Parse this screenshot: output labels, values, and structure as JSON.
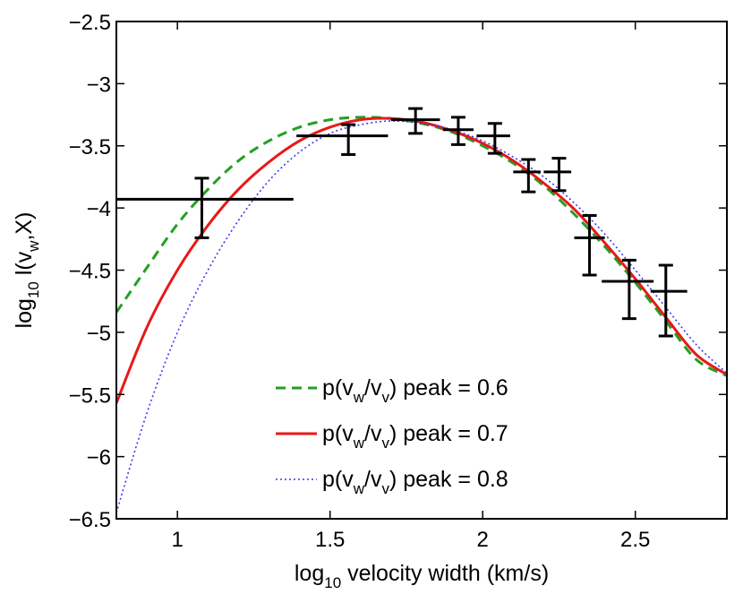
{
  "chart_data": {
    "type": "line",
    "title": "",
    "xlim": [
      0.8,
      2.8
    ],
    "ylim": [
      -6.5,
      -2.5
    ],
    "xticks": [
      1,
      1.5,
      2,
      2.5
    ],
    "xtick_labels": [
      "1",
      "1.5",
      "2",
      "2.5"
    ],
    "yticks": [
      -2.5,
      -3,
      -3.5,
      -4,
      -4.5,
      -5,
      -5.5,
      -6,
      -6.5
    ],
    "ytick_labels": [
      "−2.5",
      "−3",
      "−3.5",
      "−4",
      "−4.5",
      "−5",
      "−5.5",
      "−6",
      "−6.5"
    ],
    "xlabel": {
      "pre": "log",
      "sub": "10",
      "post": " velocity width (km/s)"
    },
    "ylabel": {
      "pre": "log",
      "sub1": "10",
      "mid": " l(v",
      "sub2": "w",
      "post": ",X)"
    },
    "grid": false,
    "legend_position": "bottom-center",
    "series": [
      {
        "name": "p(v_w/v_v) peak = 0.6",
        "legend": {
          "pre": "p(v",
          "s1": "w",
          "mid": "/v",
          "s2": "v",
          "post": ") peak = 0.6"
        },
        "color": "#22a022",
        "style": "dashed",
        "x": [
          0.8,
          0.9,
          1.0,
          1.1,
          1.2,
          1.3,
          1.4,
          1.5,
          1.6,
          1.7,
          1.8,
          1.9,
          2.0,
          2.1,
          2.2,
          2.3,
          2.4,
          2.5,
          2.6,
          2.7,
          2.8
        ],
        "y": [
          -4.84,
          -4.48,
          -4.13,
          -3.85,
          -3.62,
          -3.46,
          -3.35,
          -3.29,
          -3.27,
          -3.28,
          -3.32,
          -3.39,
          -3.5,
          -3.64,
          -3.82,
          -4.05,
          -4.31,
          -4.6,
          -4.91,
          -5.22,
          -5.35
        ]
      },
      {
        "name": "p(v_w/v_v) peak = 0.7",
        "legend": {
          "pre": "p(v",
          "s1": "w",
          "mid": "/v",
          "s2": "v",
          "post": ") peak = 0.7"
        },
        "color": "#e81818",
        "style": "solid",
        "x": [
          0.8,
          0.9,
          1.0,
          1.1,
          1.2,
          1.3,
          1.4,
          1.5,
          1.6,
          1.7,
          1.8,
          1.9,
          2.0,
          2.1,
          2.2,
          2.3,
          2.4,
          2.5,
          2.6,
          2.7,
          2.8
        ],
        "y": [
          -5.57,
          -4.96,
          -4.5,
          -4.14,
          -3.85,
          -3.63,
          -3.46,
          -3.35,
          -3.29,
          -3.28,
          -3.31,
          -3.38,
          -3.48,
          -3.62,
          -3.8,
          -4.01,
          -4.28,
          -4.57,
          -4.88,
          -5.18,
          -5.34
        ]
      },
      {
        "name": "p(v_w/v_v) peak = 0.8",
        "legend": {
          "pre": "p(v",
          "s1": "w",
          "mid": "/v",
          "s2": "v",
          "post": ") peak = 0.8"
        },
        "color": "#3a3aee",
        "style": "dotted",
        "x": [
          0.8,
          0.9,
          1.0,
          1.1,
          1.2,
          1.3,
          1.4,
          1.5,
          1.6,
          1.7,
          1.8,
          1.9,
          2.0,
          2.1,
          2.2,
          2.3,
          2.4,
          2.5,
          2.6,
          2.7,
          2.8
        ],
        "y": [
          -6.45,
          -5.65,
          -5.0,
          -4.5,
          -4.1,
          -3.78,
          -3.55,
          -3.4,
          -3.33,
          -3.3,
          -3.32,
          -3.37,
          -3.46,
          -3.59,
          -3.75,
          -3.96,
          -4.21,
          -4.5,
          -4.8,
          -5.1,
          -5.33
        ]
      }
    ],
    "data_points": [
      {
        "x": 1.08,
        "y": -3.93,
        "x_lo": 0.8,
        "x_hi": 1.38,
        "y_lo": -4.24,
        "y_hi": -3.76
      },
      {
        "x": 1.56,
        "y": -3.42,
        "x_lo": 1.39,
        "x_hi": 1.69,
        "y_lo": -3.57,
        "y_hi": -3.33
      },
      {
        "x": 1.78,
        "y": -3.29,
        "x_lo": 1.7,
        "x_hi": 1.86,
        "y_lo": -3.4,
        "y_hi": -3.2
      },
      {
        "x": 1.92,
        "y": -3.37,
        "x_lo": 1.87,
        "x_hi": 1.97,
        "y_lo": -3.49,
        "y_hi": -3.27
      },
      {
        "x": 2.04,
        "y": -3.42,
        "x_lo": 1.98,
        "x_hi": 2.09,
        "y_lo": -3.56,
        "y_hi": -3.32
      },
      {
        "x": 2.15,
        "y": -3.71,
        "x_lo": 2.1,
        "x_hi": 2.19,
        "y_lo": -3.87,
        "y_hi": -3.61
      },
      {
        "x": 2.25,
        "y": -3.71,
        "x_lo": 2.2,
        "x_hi": 2.29,
        "y_lo": -3.86,
        "y_hi": -3.6
      },
      {
        "x": 2.35,
        "y": -4.24,
        "x_lo": 2.3,
        "x_hi": 2.4,
        "y_lo": -4.54,
        "y_hi": -4.06
      },
      {
        "x": 2.48,
        "y": -4.59,
        "x_lo": 2.39,
        "x_hi": 2.56,
        "y_lo": -4.89,
        "y_hi": -4.42
      },
      {
        "x": 2.6,
        "y": -4.67,
        "x_lo": 2.55,
        "x_hi": 2.67,
        "y_lo": -5.03,
        "y_hi": -4.46
      }
    ]
  }
}
